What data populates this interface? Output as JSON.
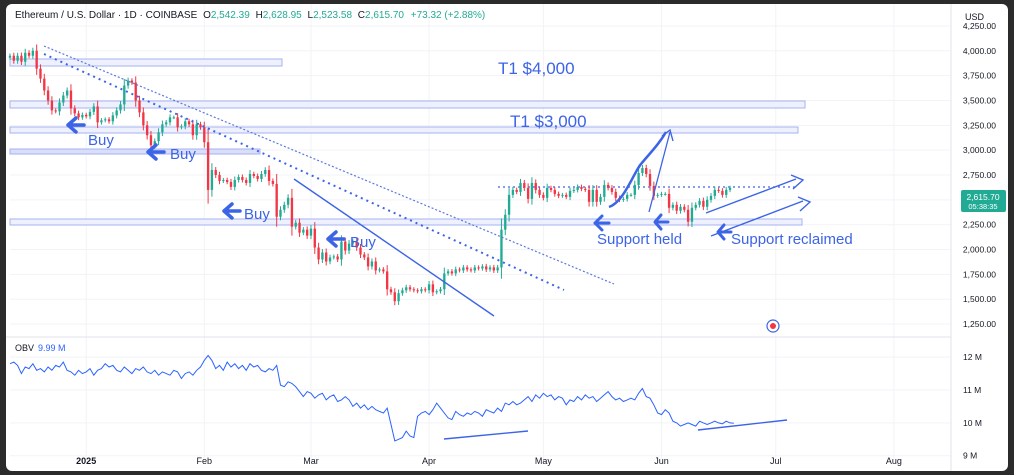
{
  "header": {
    "symbol": "Ethereum / U.S. Dollar · 1D · COINBASE",
    "open_label": "O",
    "open": "2,542.39",
    "high_label": "H",
    "high": "2,628.95",
    "low_label": "L",
    "low": "2,523.58",
    "close_label": "C",
    "close": "2,615.70",
    "change": "+73.32 (+2.88%)"
  },
  "currency": "USD",
  "price_badge": {
    "price": "2,615.70",
    "timer": "05:38:35"
  },
  "obv": {
    "label": "OBV",
    "value": "9.99 M"
  },
  "annotations": {
    "t1_4000": "T1 $4,000",
    "t1_3000": "T1 $3,000",
    "buy1": "Buy",
    "buy2": "Buy",
    "buy3": "Buy",
    "buy4": "Buy",
    "support_held": "Support held",
    "support_reclaimed": "Support reclaimed"
  },
  "colors": {
    "up": "#22ab94",
    "down": "#f23645",
    "annotation": "#3c64e6",
    "obv": "#2962ff"
  },
  "chart_data": [
    {
      "type": "candlestick",
      "title": "Ethereum / U.S. Dollar · 1D · COINBASE",
      "ylim": [
        1150,
        4350
      ],
      "y_ticks": [
        1250,
        1500,
        1750,
        2000,
        2250,
        2500,
        2750,
        3000,
        3250,
        3500,
        3750,
        4000,
        4250
      ],
      "y_tick_labels": [
        "1,250.00",
        "1,500.00",
        "1,750.00",
        "2,000.00",
        "2,250.00",
        "2,500.00",
        "2,750.00",
        "3,000.00",
        "3,250.00",
        "3,500.00",
        "3,750.00",
        "4,000.00",
        "4,250.00"
      ],
      "x_tick_labels": [
        "2025",
        "Feb",
        "Mar",
        "Apr",
        "May",
        "Jun",
        "Jul",
        "Aug"
      ],
      "x_tick_dates": [
        "2025-01-01",
        "2025-02-01",
        "2025-03-01",
        "2025-04-01",
        "2025-05-01",
        "2025-06-01",
        "2025-07-01",
        "2025-08-01"
      ],
      "xlim": [
        "2024-12-12",
        "2025-08-16"
      ],
      "start_date": "2024-12-12",
      "closes": [
        3950,
        3900,
        3950,
        3890,
        3980,
        3950,
        4000,
        3820,
        3720,
        3600,
        3500,
        3400,
        3390,
        3480,
        3550,
        3600,
        3420,
        3370,
        3330,
        3355,
        3340,
        3385,
        3440,
        3280,
        3300,
        3310,
        3290,
        3350,
        3400,
        3460,
        3650,
        3700,
        3680,
        3500,
        3380,
        3250,
        3150,
        3050,
        3090,
        3180,
        3260,
        3280,
        3330,
        3330,
        3230,
        3240,
        3290,
        3260,
        3150,
        3260,
        3230,
        3080,
        2600,
        2800,
        2750,
        2690,
        2700,
        2680,
        2630,
        2700,
        2730,
        2700,
        2670,
        2760,
        2740,
        2710,
        2760,
        2800,
        2690,
        2660,
        2330,
        2400,
        2450,
        2520,
        2230,
        2270,
        2170,
        2200,
        2140,
        2210,
        2020,
        1900,
        1970,
        1880,
        1920,
        1930,
        1900,
        2080,
        1990,
        2060,
        2080,
        2020,
        1950,
        1920,
        1830,
        1880,
        1790,
        1800,
        1780,
        1600,
        1570,
        1480,
        1560,
        1590,
        1620,
        1600,
        1590,
        1580,
        1600,
        1590,
        1650,
        1570,
        1580,
        1600,
        1760,
        1780,
        1760,
        1800,
        1790,
        1820,
        1800,
        1790,
        1820,
        1810,
        1830,
        1800,
        1820,
        1790,
        1820,
        2200,
        2350,
        2550,
        2600,
        2580,
        2670,
        2620,
        2510,
        2670,
        2600,
        2550,
        2520,
        2620,
        2600,
        2560,
        2540,
        2550,
        2530,
        2590,
        2600,
        2630,
        2610,
        2600,
        2480,
        2600,
        2480,
        2530,
        2650,
        2620,
        2580,
        2520,
        2500,
        2510,
        2550,
        2550,
        2650,
        2770,
        2820,
        2760,
        2640,
        2540,
        2550,
        2560,
        2560,
        2420,
        2450,
        2390,
        2430,
        2400,
        2280,
        2420,
        2450,
        2490,
        2430,
        2500,
        2540,
        2600,
        2590,
        2550,
        2600,
        2620
      ],
      "series": [
        {
          "name": "OBV",
          "type": "line",
          "ylim": [
            8.9,
            12.4
          ],
          "y_ticks": [
            9,
            10,
            11,
            12
          ],
          "y_tick_labels": [
            "9 M",
            "10 M",
            "11 M",
            "12 M"
          ],
          "values": [
            11.8,
            11.85,
            11.75,
            11.5,
            11.7,
            11.65,
            11.8,
            11.6,
            11.65,
            11.55,
            11.7,
            11.6,
            11.75,
            11.7,
            11.85,
            11.6,
            11.55,
            11.45,
            11.6,
            11.5,
            11.55,
            11.65,
            11.45,
            11.6,
            11.65,
            11.8,
            11.7,
            11.75,
            11.6,
            11.55,
            11.7,
            11.6,
            11.5,
            11.65,
            11.6,
            11.7,
            11.55,
            11.5,
            11.6,
            11.45,
            11.55,
            11.5,
            11.45,
            11.6,
            11.55,
            11.35,
            11.5,
            11.55,
            11.45,
            11.6,
            11.7,
            11.9,
            12.05,
            11.9,
            11.65,
            11.75,
            11.6,
            11.85,
            11.7,
            11.8,
            11.65,
            11.75,
            11.6,
            11.8,
            11.7,
            11.75,
            11.6,
            11.55,
            11.65,
            11.6,
            11.75,
            11.15,
            11.1,
            11.25,
            11.2,
            11.1,
            10.95,
            10.8,
            10.95,
            10.9,
            10.75,
            10.85,
            10.9,
            10.7,
            10.8,
            10.85,
            10.65,
            10.7,
            10.8,
            10.7,
            10.5,
            10.6,
            10.45,
            10.55,
            10.4,
            10.5,
            10.4,
            10.35,
            10.3,
            10.45,
            9.95,
            9.45,
            9.5,
            9.55,
            9.75,
            9.6,
            9.55,
            10.2,
            10.3,
            10.35,
            10.25,
            10.4,
            10.6,
            10.45,
            10.3,
            10.15,
            10.1,
            10.35,
            10.25,
            10.2,
            10.3,
            10.25,
            10.35,
            10.3,
            10.2,
            10.4,
            10.35,
            10.3,
            10.45,
            10.35,
            10.6,
            10.55,
            10.65,
            10.55,
            10.6,
            10.7,
            10.8,
            10.65,
            10.85,
            10.75,
            10.9,
            10.8,
            10.85,
            10.7,
            10.8,
            10.75,
            10.55,
            10.7,
            10.65,
            10.8,
            10.7,
            10.85,
            10.75,
            10.8,
            10.65,
            10.75,
            10.85,
            10.95,
            10.8,
            10.7,
            10.75,
            10.65,
            10.7,
            10.75,
            10.7,
            10.9,
            11.05,
            10.8,
            10.75,
            10.55,
            10.3,
            10.25,
            10.4,
            10.3,
            10.05,
            10.0,
            9.9,
            9.95,
            10.0,
            9.95,
            9.9,
            10.05,
            10.0,
            9.95,
            10.0,
            10.05,
            10.0,
            9.97,
            10.05,
            10.0,
            9.99
          ]
        }
      ]
    }
  ]
}
